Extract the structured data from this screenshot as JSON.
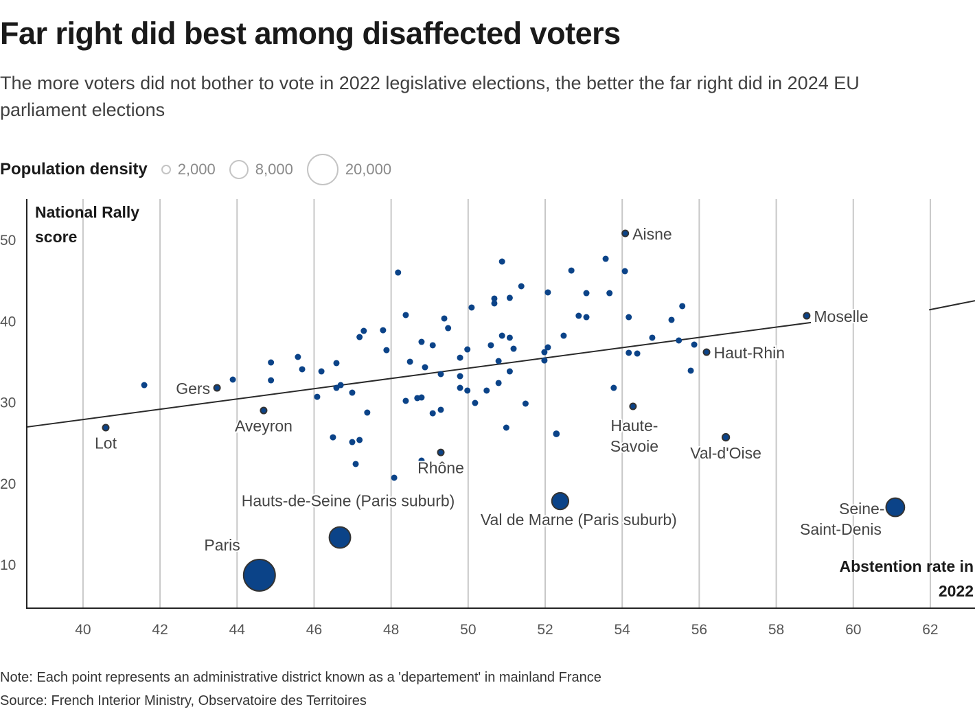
{
  "header": {
    "title": "Far right did best among disaffected voters",
    "subtitle": "The more voters did not bother to vote in 2022 legislative elections, the better the far right did in 2024 EU parliament elections"
  },
  "legend": {
    "title": "Population density",
    "items": [
      {
        "label": "2,000",
        "value": 2000
      },
      {
        "label": "8,000",
        "value": 8000
      },
      {
        "label": "20,000",
        "value": 20000
      }
    ]
  },
  "footer": {
    "note": "Note: Each point represents an administrative district known as a 'departement' in mainland France",
    "source": "Source: French Interior Ministry, Observatoire des Territoires"
  },
  "colors": {
    "point": "#0b4388",
    "highlight_stroke": "#333333",
    "grid": "#c8c8c8",
    "axis": "#222222",
    "trend": "#2a2a2a",
    "tick_label": "#555555"
  },
  "chart_data": {
    "type": "scatter",
    "title": "Far right did best among disaffected voters",
    "xlabel": "Abstention rate in 2022",
    "ylabel": "National Rally score",
    "xlim": [
      38.54,
      63.16
    ],
    "ylim": [
      4.59,
      54.99
    ],
    "xticks": [
      40,
      42,
      44,
      46,
      48,
      50,
      52,
      54,
      56,
      58,
      60,
      62
    ],
    "yticks": [
      10,
      20,
      30,
      40,
      50
    ],
    "xtick_labels": [
      "40",
      "42",
      "44",
      "46",
      "48",
      "50",
      "52",
      "54",
      "56",
      "58",
      "60",
      "62"
    ],
    "ytick_labels": [
      "10",
      "20",
      "30",
      "40",
      "50"
    ],
    "grid": "vertical",
    "size_encoding": "Population density",
    "trendline": {
      "x": [
        38.54,
        58.9,
        63.16
      ],
      "y": [
        26.91,
        39.78,
        42.47
      ]
    },
    "points": [
      {
        "x": 41.59,
        "y": 32.07,
        "density": 400
      },
      {
        "x": 43.89,
        "y": 32.75,
        "density": 400
      },
      {
        "x": 44.88,
        "y": 34.86,
        "density": 400
      },
      {
        "x": 44.88,
        "y": 32.66,
        "density": 400
      },
      {
        "x": 45.58,
        "y": 35.54,
        "density": 400
      },
      {
        "x": 45.69,
        "y": 34.02,
        "density": 400
      },
      {
        "x": 46.08,
        "y": 30.63,
        "density": 400
      },
      {
        "x": 46.19,
        "y": 33.76,
        "density": 400
      },
      {
        "x": 46.58,
        "y": 34.78,
        "density": 400
      },
      {
        "x": 46.58,
        "y": 31.73,
        "density": 400
      },
      {
        "x": 46.69,
        "y": 32.07,
        "density": 500
      },
      {
        "x": 46.49,
        "y": 25.64,
        "density": 500
      },
      {
        "x": 46.99,
        "y": 31.14,
        "density": 500
      },
      {
        "x": 46.99,
        "y": 25.05,
        "density": 500
      },
      {
        "x": 47.18,
        "y": 25.31,
        "density": 500
      },
      {
        "x": 47.08,
        "y": 22.35,
        "density": 500
      },
      {
        "x": 47.18,
        "y": 37.99,
        "density": 500
      },
      {
        "x": 47.29,
        "y": 38.75,
        "density": 500
      },
      {
        "x": 47.38,
        "y": 28.69,
        "density": 500
      },
      {
        "x": 47.79,
        "y": 38.83,
        "density": 500
      },
      {
        "x": 47.88,
        "y": 36.38,
        "density": 500
      },
      {
        "x": 48.08,
        "y": 20.66,
        "density": 700
      },
      {
        "x": 48.18,
        "y": 45.94,
        "density": 500
      },
      {
        "x": 48.38,
        "y": 40.7,
        "density": 500
      },
      {
        "x": 48.49,
        "y": 34.95,
        "density": 500
      },
      {
        "x": 48.38,
        "y": 30.13,
        "density": 500
      },
      {
        "x": 48.68,
        "y": 30.47,
        "density": 500
      },
      {
        "x": 48.79,
        "y": 30.55,
        "density": 500
      },
      {
        "x": 48.79,
        "y": 37.4,
        "density": 500
      },
      {
        "x": 48.79,
        "y": 22.77,
        "density": 500
      },
      {
        "x": 48.88,
        "y": 34.27,
        "density": 500
      },
      {
        "x": 49.08,
        "y": 36.98,
        "density": 500
      },
      {
        "x": 49.08,
        "y": 28.6,
        "density": 500
      },
      {
        "x": 49.29,
        "y": 33.43,
        "density": 500
      },
      {
        "x": 49.29,
        "y": 29.03,
        "density": 500
      },
      {
        "x": 49.38,
        "y": 40.28,
        "density": 500
      },
      {
        "x": 49.48,
        "y": 39.09,
        "density": 500
      },
      {
        "x": 49.79,
        "y": 35.45,
        "density": 500
      },
      {
        "x": 49.79,
        "y": 33.17,
        "density": 500
      },
      {
        "x": 49.79,
        "y": 31.73,
        "density": 500
      },
      {
        "x": 49.98,
        "y": 36.47,
        "density": 500
      },
      {
        "x": 49.98,
        "y": 31.4,
        "density": 500
      },
      {
        "x": 50.09,
        "y": 41.63,
        "density": 500
      },
      {
        "x": 50.18,
        "y": 29.87,
        "density": 500
      },
      {
        "x": 50.48,
        "y": 31.4,
        "density": 500
      },
      {
        "x": 50.59,
        "y": 36.98,
        "density": 500
      },
      {
        "x": 50.68,
        "y": 42.73,
        "density": 500
      },
      {
        "x": 50.68,
        "y": 42.14,
        "density": 500
      },
      {
        "x": 50.79,
        "y": 35.03,
        "density": 500
      },
      {
        "x": 50.79,
        "y": 32.33,
        "density": 500
      },
      {
        "x": 50.88,
        "y": 38.16,
        "density": 500
      },
      {
        "x": 50.88,
        "y": 47.29,
        "density": 500
      },
      {
        "x": 50.99,
        "y": 26.83,
        "density": 500
      },
      {
        "x": 51.08,
        "y": 37.91,
        "density": 500
      },
      {
        "x": 51.08,
        "y": 33.76,
        "density": 500
      },
      {
        "x": 51.08,
        "y": 42.82,
        "density": 500
      },
      {
        "x": 51.18,
        "y": 36.55,
        "density": 500
      },
      {
        "x": 51.38,
        "y": 44.25,
        "density": 500
      },
      {
        "x": 51.49,
        "y": 29.79,
        "density": 500
      },
      {
        "x": 51.98,
        "y": 36.13,
        "density": 500
      },
      {
        "x": 51.98,
        "y": 35.11,
        "density": 500
      },
      {
        "x": 52.07,
        "y": 36.72,
        "density": 500
      },
      {
        "x": 52.07,
        "y": 43.49,
        "density": 500
      },
      {
        "x": 52.29,
        "y": 26.07,
        "density": 900
      },
      {
        "x": 52.48,
        "y": 38.16,
        "density": 500
      },
      {
        "x": 52.68,
        "y": 46.19,
        "density": 500
      },
      {
        "x": 52.87,
        "y": 40.61,
        "density": 500
      },
      {
        "x": 53.07,
        "y": 43.4,
        "density": 500
      },
      {
        "x": 53.07,
        "y": 40.44,
        "density": 500
      },
      {
        "x": 53.57,
        "y": 47.63,
        "density": 500
      },
      {
        "x": 53.67,
        "y": 43.4,
        "density": 500
      },
      {
        "x": 53.78,
        "y": 31.73,
        "density": 500
      },
      {
        "x": 54.07,
        "y": 46.11,
        "density": 500
      },
      {
        "x": 54.17,
        "y": 40.44,
        "density": 500
      },
      {
        "x": 54.17,
        "y": 36.05,
        "density": 500
      },
      {
        "x": 54.39,
        "y": 35.96,
        "density": 500
      },
      {
        "x": 54.78,
        "y": 37.91,
        "density": 500
      },
      {
        "x": 55.28,
        "y": 40.11,
        "density": 500
      },
      {
        "x": 55.47,
        "y": 37.57,
        "density": 600
      },
      {
        "x": 55.56,
        "y": 41.8,
        "density": 500
      },
      {
        "x": 55.87,
        "y": 37.06,
        "density": 500
      },
      {
        "x": 55.78,
        "y": 33.85,
        "density": 500
      }
    ],
    "labeled_points": [
      {
        "name": "Lot",
        "x": 40.59,
        "y": 26.83,
        "density": 400,
        "label": "Lot",
        "anchor": "below"
      },
      {
        "name": "Gers",
        "x": 43.48,
        "y": 31.73,
        "density": 400,
        "label": "Gers",
        "anchor": "left"
      },
      {
        "name": "Aveyron",
        "x": 44.69,
        "y": 28.94,
        "density": 400,
        "label": "Aveyron",
        "anchor": "below"
      },
      {
        "name": "Paris",
        "x": 44.58,
        "y": 8.65,
        "density": 20000,
        "label": "Paris",
        "anchor": "upper-left"
      },
      {
        "name": "Hauts-de-Seine",
        "x": 46.67,
        "y": 13.3,
        "density": 9000,
        "label": "Hauts-de-Seine (Paris suburb)",
        "anchor": "above"
      },
      {
        "name": "Rhône",
        "x": 49.29,
        "y": 23.78,
        "density": 600,
        "label": "Rhône",
        "anchor": "below"
      },
      {
        "name": "Val de Marne",
        "x": 52.39,
        "y": 17.78,
        "density": 5600,
        "label": "Val de Marne (Paris suburb)",
        "anchor": "below"
      },
      {
        "name": "Aisne",
        "x": 54.08,
        "y": 50.76,
        "density": 400,
        "label": "Aisne",
        "anchor": "right"
      },
      {
        "name": "Haute-Savoie",
        "x": 54.28,
        "y": 29.45,
        "density": 400,
        "label": "Haute-\nSavoie",
        "anchor": "below"
      },
      {
        "name": "Haut-Rhin",
        "x": 56.19,
        "y": 36.13,
        "density": 500,
        "label": "Haut-Rhin",
        "anchor": "right"
      },
      {
        "name": "Val-d'Oise",
        "x": 56.69,
        "y": 25.64,
        "density": 1000,
        "label": "Val-d'Oise",
        "anchor": "below"
      },
      {
        "name": "Moselle",
        "x": 58.79,
        "y": 40.61,
        "density": 500,
        "label": "Moselle",
        "anchor": "right"
      },
      {
        "name": "Seine-Saint-Denis",
        "x": 61.09,
        "y": 17.02,
        "density": 6800,
        "label": "Seine-\nSaint-Denis",
        "anchor": "left"
      }
    ]
  }
}
